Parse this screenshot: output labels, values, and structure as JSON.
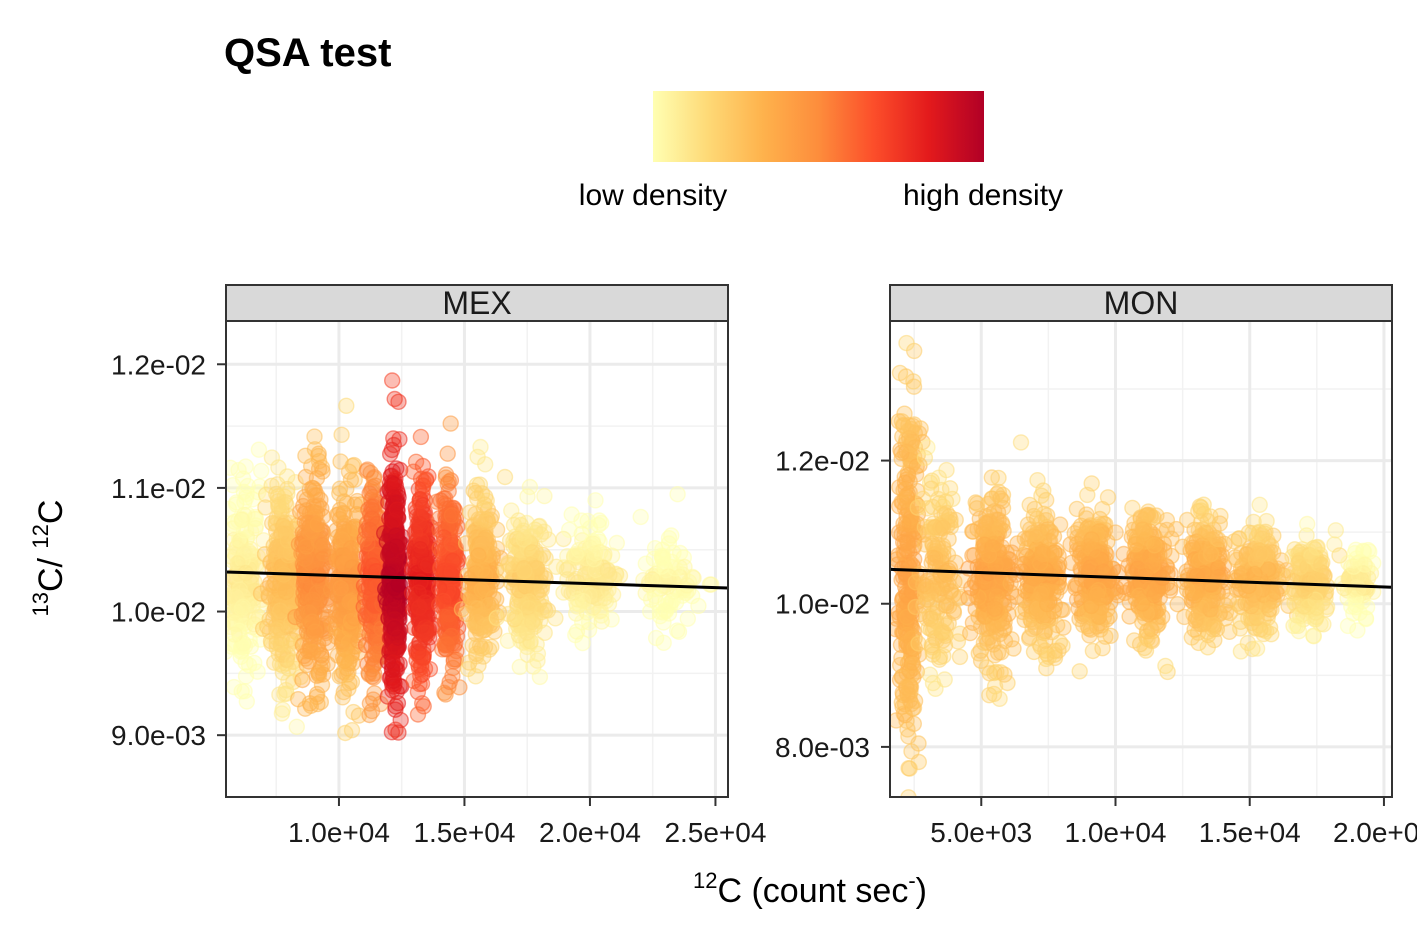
{
  "chart_data": {
    "type": "scatter",
    "title": "QSA test",
    "legend": {
      "low_label": "low density",
      "high_label": "high density",
      "colors": [
        "#FFFFB2",
        "#FED976",
        "#FEB24C",
        "#FD8D3C",
        "#FC4E2A",
        "#E31A1C",
        "#B10026"
      ],
      "placement": "top-center"
    },
    "xlabel": {
      "sup": "12",
      "main": "C (count sec",
      "sup2": "-",
      "end": ")"
    },
    "ylabel": {
      "sup1": "13",
      "main1": "C/ ",
      "sup2": "12",
      "main2": "C"
    },
    "grid": true,
    "panels": [
      {
        "name": "MEX",
        "xlim": [
          5500,
          25500
        ],
        "ylim": [
          0.0085,
          0.01235
        ],
        "xticks": [
          10000,
          15000,
          20000,
          25000
        ],
        "xtick_labels": [
          "1.0e+04",
          "1.5e+04",
          "2.0e+04",
          "2.5e+04"
        ],
        "yticks": [
          0.009,
          0.01,
          0.011,
          0.012
        ],
        "ytick_labels": [
          "9.0e-03",
          "1.0e-02",
          "1.1e-02",
          "1.2e-02"
        ],
        "trend": {
          "x": [
            5500,
            25500
          ],
          "y": [
            0.01032,
            0.01019
          ]
        },
        "clusters": [
          {
            "x": 6200,
            "spread": 600,
            "y": 0.01025,
            "ysd": 0.0004,
            "n": 200,
            "density": 0.1
          },
          {
            "x": 7800,
            "spread": 600,
            "y": 0.01025,
            "ysd": 0.0004,
            "n": 260,
            "density": 0.3
          },
          {
            "x": 9000,
            "spread": 500,
            "y": 0.01025,
            "ysd": 0.00042,
            "n": 320,
            "density": 0.5
          },
          {
            "x": 10300,
            "spread": 450,
            "y": 0.01025,
            "ysd": 0.0004,
            "n": 300,
            "density": 0.45
          },
          {
            "x": 11400,
            "spread": 300,
            "y": 0.0103,
            "ysd": 0.0004,
            "n": 260,
            "density": 0.65
          },
          {
            "x": 12200,
            "spread": 220,
            "y": 0.01025,
            "ysd": 0.00045,
            "n": 420,
            "density": 0.98
          },
          {
            "x": 13300,
            "spread": 300,
            "y": 0.01025,
            "ysd": 0.0004,
            "n": 340,
            "density": 0.82
          },
          {
            "x": 14400,
            "spread": 300,
            "y": 0.01025,
            "ysd": 0.00037,
            "n": 260,
            "density": 0.7
          },
          {
            "x": 15700,
            "spread": 500,
            "y": 0.01025,
            "ysd": 0.00035,
            "n": 260,
            "density": 0.35
          },
          {
            "x": 17500,
            "spread": 700,
            "y": 0.01025,
            "ysd": 0.0003,
            "n": 220,
            "density": 0.22
          },
          {
            "x": 20000,
            "spread": 900,
            "y": 0.01025,
            "ysd": 0.00025,
            "n": 130,
            "density": 0.12
          },
          {
            "x": 23200,
            "spread": 1100,
            "y": 0.01025,
            "ysd": 0.00023,
            "n": 90,
            "density": 0.05
          }
        ]
      },
      {
        "name": "MON",
        "xlim": [
          1600,
          20300
        ],
        "ylim": [
          0.0073,
          0.01395
        ],
        "xticks": [
          5000,
          10000,
          15000,
          20000
        ],
        "xtick_labels": [
          "5.0e+03",
          "1.0e+04",
          "1.5e+04",
          "2.0e+04"
        ],
        "yticks": [
          0.008,
          0.01,
          0.012
        ],
        "ytick_labels": [
          "8.0e-03",
          "1.0e-02",
          "1.2e-02"
        ],
        "trend": {
          "x": [
            1600,
            20300
          ],
          "y": [
            0.01048,
            0.01023
          ]
        },
        "clusters": [
          {
            "x": 2300,
            "spread": 350,
            "y": 0.0104,
            "ysd": 0.0013,
            "n": 260,
            "density": 0.4
          },
          {
            "x": 3400,
            "spread": 600,
            "y": 0.0104,
            "ysd": 0.0007,
            "n": 160,
            "density": 0.3
          },
          {
            "x": 5400,
            "spread": 600,
            "y": 0.0104,
            "ysd": 0.0006,
            "n": 280,
            "density": 0.4
          },
          {
            "x": 7300,
            "spread": 700,
            "y": 0.0104,
            "ysd": 0.0005,
            "n": 240,
            "density": 0.38
          },
          {
            "x": 9200,
            "spread": 600,
            "y": 0.0104,
            "ysd": 0.00045,
            "n": 240,
            "density": 0.4
          },
          {
            "x": 11200,
            "spread": 700,
            "y": 0.0104,
            "ysd": 0.00045,
            "n": 240,
            "density": 0.4
          },
          {
            "x": 13300,
            "spread": 700,
            "y": 0.0104,
            "ysd": 0.00042,
            "n": 230,
            "density": 0.38
          },
          {
            "x": 15300,
            "spread": 700,
            "y": 0.01035,
            "ysd": 0.0004,
            "n": 220,
            "density": 0.32
          },
          {
            "x": 17300,
            "spread": 600,
            "y": 0.01035,
            "ysd": 0.00035,
            "n": 150,
            "density": 0.22
          },
          {
            "x": 19100,
            "spread": 500,
            "y": 0.0103,
            "ysd": 0.00025,
            "n": 80,
            "density": 0.1
          }
        ]
      }
    ]
  }
}
